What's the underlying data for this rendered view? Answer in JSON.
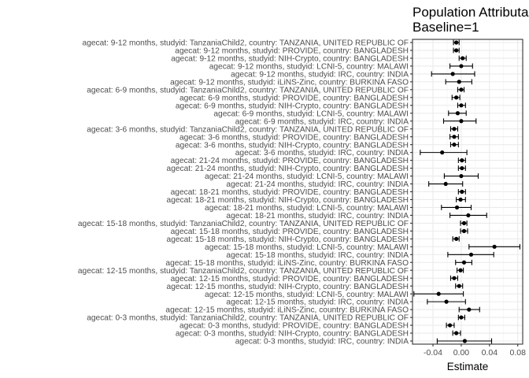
{
  "chart_data": {
    "type": "scatter",
    "title_lines": [
      "Population Attributable Fraction",
      "Baseline=1"
    ],
    "xlabel": "Estimate",
    "ylabel": "",
    "xlim": [
      -0.069,
      0.087
    ],
    "xticks": [
      -0.04,
      0.0,
      0.04,
      0.08
    ],
    "xtick_labels": [
      "-0.04",
      "0.00",
      "0.04",
      "0.08"
    ],
    "grid": true,
    "points": [
      {
        "label": "agecat: 9-12 months, studyid: TanzaniaChild2, country: TANZANIA, UNITED REPUBLIC OF",
        "estimate": -0.007,
        "ci_lower": -0.011,
        "ci_upper": -0.003
      },
      {
        "label": "agecat: 9-12 months, studyid: PROVIDE, country: BANGLADESH",
        "estimate": -0.007,
        "ci_lower": -0.011,
        "ci_upper": -0.003
      },
      {
        "label": "agecat: 9-12 months, studyid: NIH-Crypto, country: BANGLADESH",
        "estimate": 0.002,
        "ci_lower": -0.003,
        "ci_upper": 0.007
      },
      {
        "label": "agecat: 9-12 months, studyid: LCNI-5, country: MALAWI",
        "estimate": 0.0,
        "ci_lower": -0.016,
        "ci_upper": 0.016
      },
      {
        "label": "agecat: 9-12 months, studyid: IRC, country: INDIA",
        "estimate": -0.012,
        "ci_lower": -0.042,
        "ci_upper": 0.019
      },
      {
        "label": "agecat: 9-12 months, studyid: iLiNS-Zinc, country: BURKINA FASO",
        "estimate": -0.003,
        "ci_lower": -0.022,
        "ci_upper": 0.015
      },
      {
        "label": "agecat: 6-9 months, studyid: TanzaniaChild2, country: TANZANIA, UNITED REPUBLIC OF",
        "estimate": 0.0,
        "ci_lower": -0.005,
        "ci_upper": 0.004
      },
      {
        "label": "agecat: 6-9 months, studyid: PROVIDE, country: BANGLADESH",
        "estimate": -0.007,
        "ci_lower": -0.013,
        "ci_upper": -0.002
      },
      {
        "label": "agecat: 6-9 months, studyid: NIH-Crypto, country: BANGLADESH",
        "estimate": 0.0,
        "ci_lower": -0.005,
        "ci_upper": 0.006
      },
      {
        "label": "agecat: 6-9 months, studyid: LCNI-5, country: MALAWI",
        "estimate": -0.005,
        "ci_lower": -0.018,
        "ci_upper": 0.007
      },
      {
        "label": "agecat: 6-9 months, studyid: IRC, country: INDIA",
        "estimate": 0.0,
        "ci_lower": -0.025,
        "ci_upper": 0.021
      },
      {
        "label": "agecat: 3-6 months, studyid: TanzaniaChild2, country: TANZANIA, UNITED REPUBLIC OF",
        "estimate": -0.01,
        "ci_lower": -0.015,
        "ci_upper": -0.005
      },
      {
        "label": "agecat: 3-6 months, studyid: PROVIDE, country: BANGLADESH",
        "estimate": -0.01,
        "ci_lower": -0.016,
        "ci_upper": -0.004
      },
      {
        "label": "agecat: 3-6 months, studyid: NIH-Crypto, country: BANGLADESH",
        "estimate": -0.01,
        "ci_lower": -0.015,
        "ci_upper": -0.004
      },
      {
        "label": "agecat: 3-6 months, studyid: IRC, country: INDIA",
        "estimate": -0.027,
        "ci_lower": -0.058,
        "ci_upper": 0.008
      },
      {
        "label": "agecat: 21-24 months, studyid: PROVIDE, country: BANGLADESH",
        "estimate": 0.001,
        "ci_lower": -0.004,
        "ci_upper": 0.006
      },
      {
        "label": "agecat: 21-24 months, studyid: NIH-Crypto, country: BANGLADESH",
        "estimate": 0.001,
        "ci_lower": -0.004,
        "ci_upper": 0.006
      },
      {
        "label": "agecat: 21-24 months, studyid: LCNI-5, country: MALAWI",
        "estimate": 0.0,
        "ci_lower": -0.024,
        "ci_upper": 0.024
      },
      {
        "label": "agecat: 21-24 months, studyid: IRC, country: INDIA",
        "estimate": -0.022,
        "ci_lower": -0.046,
        "ci_upper": 0.002
      },
      {
        "label": "agecat: 18-21 months, studyid: PROVIDE, country: BANGLADESH",
        "estimate": 0.001,
        "ci_lower": -0.004,
        "ci_upper": 0.006
      },
      {
        "label": "agecat: 18-21 months, studyid: NIH-Crypto, country: BANGLADESH",
        "estimate": -0.001,
        "ci_lower": -0.007,
        "ci_upper": 0.006
      },
      {
        "label": "agecat: 18-21 months, studyid: LCNI-5, country: MALAWI",
        "estimate": -0.006,
        "ci_lower": -0.028,
        "ci_upper": 0.014
      },
      {
        "label": "agecat: 18-21 months, studyid: IRC, country: INDIA",
        "estimate": 0.01,
        "ci_lower": -0.016,
        "ci_upper": 0.036
      },
      {
        "label": "agecat: 15-18 months, studyid: TanzaniaChild2, country: TANZANIA, UNITED REPUBLIC OF",
        "estimate": 0.004,
        "ci_lower": -0.001,
        "ci_upper": 0.008
      },
      {
        "label": "agecat: 15-18 months, studyid: PROVIDE, country: BANGLADESH",
        "estimate": 0.004,
        "ci_lower": -0.001,
        "ci_upper": 0.009
      },
      {
        "label": "agecat: 15-18 months, studyid: NIH-Crypto, country: BANGLADESH",
        "estimate": -0.007,
        "ci_lower": -0.012,
        "ci_upper": -0.003
      },
      {
        "label": "agecat: 15-18 months, studyid: LCNI-5, country: MALAWI",
        "estimate": 0.047,
        "ci_lower": 0.011,
        "ci_upper": 0.083
      },
      {
        "label": "agecat: 15-18 months, studyid: IRC, country: INDIA",
        "estimate": 0.014,
        "ci_lower": -0.019,
        "ci_upper": 0.046
      },
      {
        "label": "agecat: 15-18 months, studyid: iLiNS-Zinc, country: BURKINA FASO",
        "estimate": 0.004,
        "ci_lower": -0.008,
        "ci_upper": 0.015
      },
      {
        "label": "agecat: 12-15 months, studyid: TanzaniaChild2, country: TANZANIA, UNITED REPUBLIC OF",
        "estimate": -0.001,
        "ci_lower": -0.006,
        "ci_upper": 0.003
      },
      {
        "label": "agecat: 12-15 months, studyid: PROVIDE, country: BANGLADESH",
        "estimate": -0.01,
        "ci_lower": -0.015,
        "ci_upper": -0.005
      },
      {
        "label": "agecat: 12-15 months, studyid: NIH-Crypto, country: BANGLADESH",
        "estimate": -0.003,
        "ci_lower": -0.008,
        "ci_upper": 0.002
      },
      {
        "label": "agecat: 12-15 months, studyid: LCNI-5, country: MALAWI",
        "estimate": -0.032,
        "ci_lower": -0.067,
        "ci_upper": 0.003
      },
      {
        "label": "agecat: 12-15 months, studyid: IRC, country: INDIA",
        "estimate": -0.021,
        "ci_lower": -0.048,
        "ci_upper": 0.006
      },
      {
        "label": "agecat: 12-15 months, studyid: iLiNS-Zinc, country: BURKINA FASO",
        "estimate": 0.011,
        "ci_lower": -0.003,
        "ci_upper": 0.026
      },
      {
        "label": "agecat: 0-3 months, studyid: TanzaniaChild2, country: TANZANIA, UNITED REPUBLIC OF",
        "estimate": 0.0,
        "ci_lower": -0.004,
        "ci_upper": 0.005
      },
      {
        "label": "agecat: 0-3 months, studyid: PROVIDE, country: BANGLADESH",
        "estimate": -0.016,
        "ci_lower": -0.021,
        "ci_upper": -0.01
      },
      {
        "label": "agecat: 0-3 months, studyid: NIH-Crypto, country: BANGLADESH",
        "estimate": -0.007,
        "ci_lower": -0.012,
        "ci_upper": -0.001
      },
      {
        "label": "agecat: 0-3 months, studyid: IRC, country: INDIA",
        "estimate": 0.005,
        "ci_lower": -0.034,
        "ci_upper": 0.043
      }
    ]
  }
}
